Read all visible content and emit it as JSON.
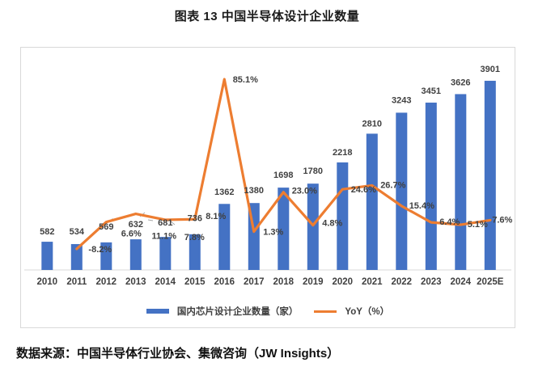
{
  "title": "图表 13 中国半导体设计企业数量",
  "source": "数据来源：中国半导体行业协会、集微咨询（JW Insights）",
  "legend": {
    "bars": "国内芯片设计企业数量（家）",
    "line": "YoY（%）"
  },
  "colors": {
    "bar": "#4472C4",
    "line": "#ED7D31",
    "label": "#404040",
    "axis": "#d9d9d9",
    "leader": "#a6a6a6"
  },
  "chart_data": {
    "type": "bar",
    "subtype": "bar+line-combo",
    "categories": [
      "2010",
      "2011",
      "2012",
      "2013",
      "2014",
      "2015",
      "2016",
      "2017",
      "2018",
      "2019",
      "2020",
      "2021",
      "2022",
      "2023",
      "2024",
      "2025E"
    ],
    "series": [
      {
        "name": "国内芯片设计企业数量（家）",
        "type": "bar",
        "values": [
          582,
          534,
          569,
          632,
          681,
          736,
          1362,
          1380,
          1698,
          1780,
          2218,
          2810,
          3243,
          3451,
          3626,
          3901
        ],
        "labels": [
          "582",
          "534",
          "569",
          "632",
          "681",
          "736",
          "1362",
          "1380",
          "1698",
          "1780",
          "2218",
          "2810",
          "3243",
          "3451",
          "3626",
          "3901"
        ]
      },
      {
        "name": "YoY（%）",
        "type": "line",
        "values": [
          null,
          -8.2,
          6.6,
          11.1,
          7.8,
          8.1,
          85.1,
          1.3,
          23.0,
          4.8,
          24.6,
          26.7,
          15.4,
          6.4,
          5.1,
          7.6
        ],
        "labels": [
          "",
          "-8.2%",
          "6.6%",
          "11.1%",
          "7.8%",
          "8.1%",
          "85.1%",
          "1.3%",
          "23.0%",
          "4.8%",
          "24.6%",
          "26.7%",
          "15.4%",
          "6.4%",
          "5.1%",
          "7.6%"
        ]
      }
    ],
    "title": "图表 13 中国半导体设计企业数量",
    "xlabel": "",
    "ylabel": "",
    "grid": false,
    "legend_position": "bottom",
    "axes_tick_labels_visible": false
  }
}
